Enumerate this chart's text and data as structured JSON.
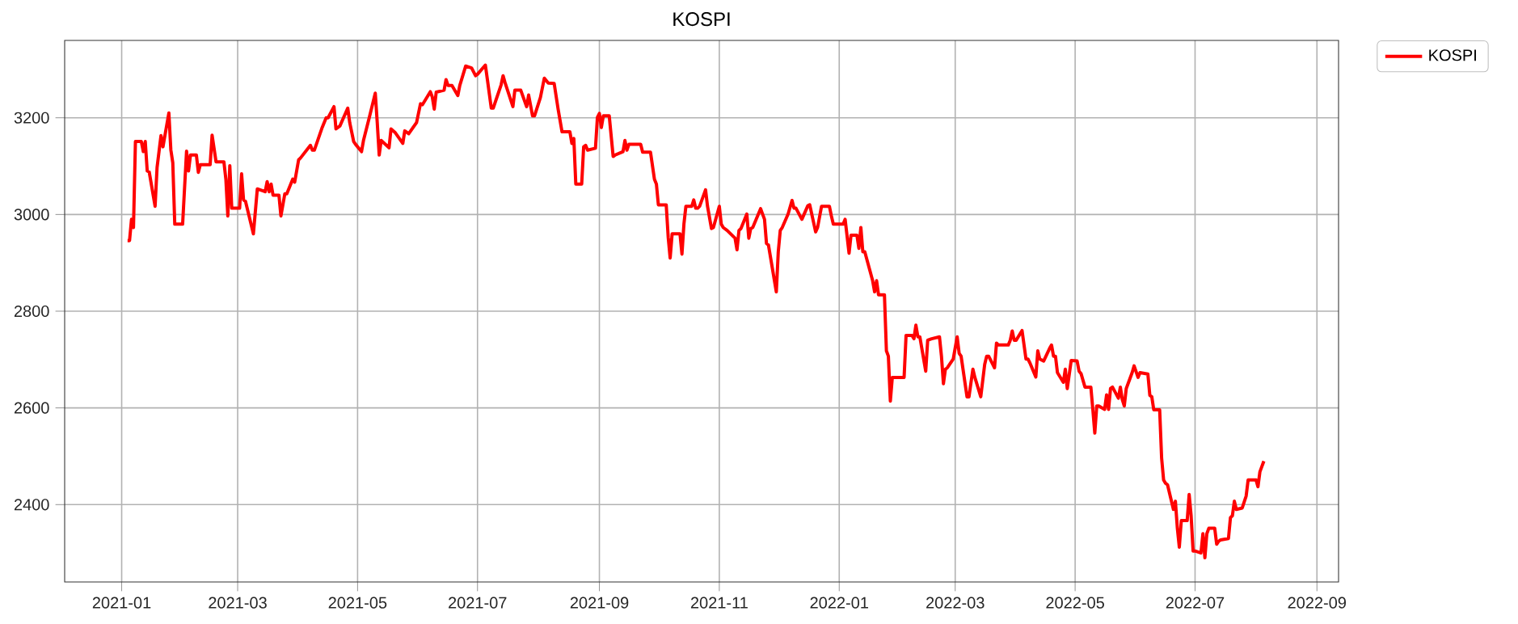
{
  "chart_data": {
    "type": "line",
    "title": "KOSPI",
    "x": [
      "2021-01-04",
      "2021-01-05",
      "2021-01-06",
      "2021-01-07",
      "2021-01-08",
      "2021-01-11",
      "2021-01-12",
      "2021-01-13",
      "2021-01-14",
      "2021-01-15",
      "2021-01-18",
      "2021-01-19",
      "2021-01-21",
      "2021-01-22",
      "2021-01-25",
      "2021-01-26",
      "2021-01-27",
      "2021-01-28",
      "2021-01-29",
      "2021-02-01",
      "2021-02-03",
      "2021-02-04",
      "2021-02-05",
      "2021-02-08",
      "2021-02-09",
      "2021-02-10",
      "2021-02-15",
      "2021-02-16",
      "2021-02-18",
      "2021-02-22",
      "2021-02-23",
      "2021-02-24",
      "2021-02-25",
      "2021-02-26",
      "2021-03-02",
      "2021-03-03",
      "2021-03-04",
      "2021-03-05",
      "2021-03-09",
      "2021-03-11",
      "2021-03-15",
      "2021-03-16",
      "2021-03-17",
      "2021-03-18",
      "2021-03-19",
      "2021-03-22",
      "2021-03-23",
      "2021-03-25",
      "2021-03-26",
      "2021-03-29",
      "2021-03-30",
      "2021-04-01",
      "2021-04-02",
      "2021-04-07",
      "2021-04-08",
      "2021-04-09",
      "2021-04-13",
      "2021-04-15",
      "2021-04-16",
      "2021-04-19",
      "2021-04-20",
      "2021-04-22",
      "2021-04-26",
      "2021-04-27",
      "2021-04-29",
      "2021-04-30",
      "2021-05-03",
      "2021-05-04",
      "2021-05-07",
      "2021-05-10",
      "2021-05-11",
      "2021-05-12",
      "2021-05-13",
      "2021-05-17",
      "2021-05-18",
      "2021-05-20",
      "2021-05-24",
      "2021-05-25",
      "2021-05-27",
      "2021-05-31",
      "2021-06-02",
      "2021-06-03",
      "2021-06-07",
      "2021-06-08",
      "2021-06-09",
      "2021-06-10",
      "2021-06-14",
      "2021-06-15",
      "2021-06-16",
      "2021-06-18",
      "2021-06-21",
      "2021-06-22",
      "2021-06-25",
      "2021-06-28",
      "2021-06-30",
      "2021-07-01",
      "2021-07-05",
      "2021-07-06",
      "2021-07-08",
      "2021-07-09",
      "2021-07-13",
      "2021-07-14",
      "2021-07-15",
      "2021-07-19",
      "2021-07-20",
      "2021-07-23",
      "2021-07-26",
      "2021-07-27",
      "2021-07-29",
      "2021-07-30",
      "2021-08-02",
      "2021-08-04",
      "2021-08-06",
      "2021-08-09",
      "2021-08-11",
      "2021-08-13",
      "2021-08-17",
      "2021-08-18",
      "2021-08-19",
      "2021-08-20",
      "2021-08-23",
      "2021-08-24",
      "2021-08-25",
      "2021-08-26",
      "2021-08-30",
      "2021-08-31",
      "2021-09-01",
      "2021-09-02",
      "2021-09-03",
      "2021-09-06",
      "2021-09-08",
      "2021-09-09",
      "2021-09-13",
      "2021-09-14",
      "2021-09-15",
      "2021-09-16",
      "2021-09-22",
      "2021-09-23",
      "2021-09-27",
      "2021-09-29",
      "2021-09-30",
      "2021-10-01",
      "2021-10-05",
      "2021-10-06",
      "2021-10-07",
      "2021-10-08",
      "2021-10-12",
      "2021-10-13",
      "2021-10-14",
      "2021-10-15",
      "2021-10-18",
      "2021-10-19",
      "2021-10-20",
      "2021-10-21",
      "2021-10-22",
      "2021-10-25",
      "2021-10-26",
      "2021-10-28",
      "2021-10-29",
      "2021-11-01",
      "2021-11-02",
      "2021-11-03",
      "2021-11-05",
      "2021-11-09",
      "2021-11-10",
      "2021-11-11",
      "2021-11-12",
      "2021-11-15",
      "2021-11-16",
      "2021-11-17",
      "2021-11-18",
      "2021-11-22",
      "2021-11-24",
      "2021-11-25",
      "2021-11-26",
      "2021-11-30",
      "2021-12-01",
      "2021-12-02",
      "2021-12-03",
      "2021-12-06",
      "2021-12-08",
      "2021-12-09",
      "2021-12-10",
      "2021-12-13",
      "2021-12-16",
      "2021-12-17",
      "2021-12-20",
      "2021-12-21",
      "2021-12-23",
      "2021-12-27",
      "2021-12-28",
      "2021-12-29",
      "2022-01-03",
      "2022-01-04",
      "2022-01-06",
      "2022-01-07",
      "2022-01-10",
      "2022-01-11",
      "2022-01-12",
      "2022-01-13",
      "2022-01-14",
      "2022-01-18",
      "2022-01-19",
      "2022-01-20",
      "2022-01-21",
      "2022-01-24",
      "2022-01-25",
      "2022-01-26",
      "2022-01-27",
      "2022-01-28",
      "2022-02-03",
      "2022-02-04",
      "2022-02-07",
      "2022-02-08",
      "2022-02-09",
      "2022-02-10",
      "2022-02-11",
      "2022-02-14",
      "2022-02-15",
      "2022-02-17",
      "2022-02-21",
      "2022-02-22",
      "2022-02-23",
      "2022-02-24",
      "2022-02-25",
      "2022-02-28",
      "2022-03-02",
      "2022-03-03",
      "2022-03-04",
      "2022-03-07",
      "2022-03-08",
      "2022-03-10",
      "2022-03-11",
      "2022-03-14",
      "2022-03-16",
      "2022-03-17",
      "2022-03-18",
      "2022-03-21",
      "2022-03-22",
      "2022-03-23",
      "2022-03-28",
      "2022-03-29",
      "2022-03-30",
      "2022-03-31",
      "2022-04-01",
      "2022-04-04",
      "2022-04-06",
      "2022-04-07",
      "2022-04-08",
      "2022-04-11",
      "2022-04-12",
      "2022-04-13",
      "2022-04-15",
      "2022-04-18",
      "2022-04-19",
      "2022-04-20",
      "2022-04-21",
      "2022-04-22",
      "2022-04-25",
      "2022-04-26",
      "2022-04-27",
      "2022-04-29",
      "2022-05-02",
      "2022-05-03",
      "2022-05-04",
      "2022-05-06",
      "2022-05-09",
      "2022-05-10",
      "2022-05-11",
      "2022-05-12",
      "2022-05-13",
      "2022-05-16",
      "2022-05-17",
      "2022-05-18",
      "2022-05-19",
      "2022-05-20",
      "2022-05-23",
      "2022-05-24",
      "2022-05-25",
      "2022-05-26",
      "2022-05-27",
      "2022-05-30",
      "2022-05-31",
      "2022-06-02",
      "2022-06-03",
      "2022-06-07",
      "2022-06-08",
      "2022-06-09",
      "2022-06-10",
      "2022-06-13",
      "2022-06-14",
      "2022-06-15",
      "2022-06-16",
      "2022-06-17",
      "2022-06-20",
      "2022-06-21",
      "2022-06-22",
      "2022-06-23",
      "2022-06-24",
      "2022-06-27",
      "2022-06-28",
      "2022-06-29",
      "2022-06-30",
      "2022-07-01",
      "2022-07-04",
      "2022-07-05",
      "2022-07-06",
      "2022-07-07",
      "2022-07-08",
      "2022-07-11",
      "2022-07-12",
      "2022-07-13",
      "2022-07-14",
      "2022-07-18",
      "2022-07-19",
      "2022-07-20",
      "2022-07-21",
      "2022-07-22",
      "2022-07-25",
      "2022-07-27",
      "2022-07-28",
      "2022-08-01",
      "2022-08-02",
      "2022-08-03",
      "2022-08-05"
    ],
    "series": [
      {
        "name": "KOSPI",
        "color": "#ff0000",
        "values": [
          2946,
          2946,
          2990,
          2973,
          3151,
          3151,
          3130,
          3151,
          3090,
          3088,
          3017,
          3097,
          3163,
          3140,
          3210,
          3134,
          3107,
          2980,
          2980,
          2980,
          3131,
          3090,
          3123,
          3123,
          3087,
          3103,
          3103,
          3164,
          3109,
          3109,
          3073,
          2997,
          3101,
          3013,
          3013,
          3084,
          3030,
          3027,
          2960,
          3053,
          3047,
          3068,
          3047,
          3063,
          3040,
          3040,
          2997,
          3043,
          3043,
          3073,
          3067,
          3113,
          3117,
          3143,
          3133,
          3133,
          3180,
          3200,
          3200,
          3223,
          3177,
          3183,
          3220,
          3190,
          3151,
          3145,
          3130,
          3153,
          3201,
          3251,
          3190,
          3123,
          3153,
          3138,
          3177,
          3170,
          3147,
          3173,
          3167,
          3190,
          3229,
          3227,
          3254,
          3243,
          3218,
          3253,
          3257,
          3279,
          3267,
          3267,
          3246,
          3267,
          3307,
          3303,
          3287,
          3290,
          3309,
          3280,
          3220,
          3220,
          3268,
          3287,
          3273,
          3223,
          3257,
          3257,
          3223,
          3247,
          3204,
          3204,
          3242,
          3282,
          3272,
          3271,
          3218,
          3171,
          3171,
          3147,
          3157,
          3063,
          3063,
          3140,
          3143,
          3133,
          3137,
          3201,
          3209,
          3180,
          3204,
          3204,
          3120,
          3123,
          3130,
          3153,
          3133,
          3145,
          3145,
          3129,
          3129,
          3073,
          3063,
          3020,
          3020,
          2953,
          2910,
          2960,
          2960,
          2918,
          2980,
          3017,
          3017,
          3030,
          3013,
          3013,
          3017,
          3051,
          3017,
          2971,
          2973,
          3017,
          2980,
          2973,
          2967,
          2951,
          2927,
          2967,
          2971,
          3001,
          2951,
          2971,
          2973,
          3012,
          2990,
          2940,
          2937,
          2840,
          2923,
          2967,
          2973,
          3001,
          3029,
          3013,
          3013,
          2990,
          3018,
          3020,
          2964,
          2973,
          3017,
          3017,
          2997,
          2980,
          2980,
          2990,
          2920,
          2957,
          2957,
          2930,
          2973,
          2923,
          2923,
          2863,
          2840,
          2863,
          2834,
          2834,
          2718,
          2707,
          2614,
          2663,
          2663,
          2750,
          2750,
          2743,
          2771,
          2747,
          2747,
          2676,
          2740,
          2743,
          2747,
          2707,
          2650,
          2680,
          2683,
          2701,
          2747,
          2713,
          2707,
          2623,
          2623,
          2680,
          2663,
          2623,
          2690,
          2707,
          2707,
          2683,
          2734,
          2730,
          2730,
          2740,
          2759,
          2740,
          2740,
          2760,
          2701,
          2701,
          2693,
          2664,
          2718,
          2701,
          2697,
          2723,
          2730,
          2707,
          2707,
          2673,
          2653,
          2680,
          2640,
          2698,
          2697,
          2676,
          2671,
          2643,
          2643,
          2597,
          2548,
          2604,
          2604,
          2597,
          2627,
          2597,
          2640,
          2643,
          2620,
          2643,
          2617,
          2604,
          2640,
          2673,
          2687,
          2663,
          2673,
          2670,
          2626,
          2623,
          2596,
          2596,
          2496,
          2451,
          2444,
          2441,
          2390,
          2407,
          2351,
          2312,
          2367,
          2367,
          2421,
          2377,
          2304,
          2304,
          2300,
          2340,
          2290,
          2340,
          2351,
          2351,
          2318,
          2324,
          2327,
          2330,
          2373,
          2377,
          2407,
          2390,
          2393,
          2418,
          2451,
          2451,
          2437,
          2468,
          2490
        ]
      }
    ],
    "xlim": [
      "2020-12-03",
      "2022-09-12"
    ],
    "xticks": [
      "2021-01",
      "2021-03",
      "2021-05",
      "2021-07",
      "2021-09",
      "2021-11",
      "2022-01",
      "2022-03",
      "2022-05",
      "2022-07",
      "2022-09"
    ],
    "ylim": [
      2240,
      3360
    ],
    "yticks": [
      2400,
      2600,
      2800,
      3000,
      3200
    ],
    "grid": true,
    "legend": "top right",
    "marker": "none",
    "line_style": "solid"
  }
}
